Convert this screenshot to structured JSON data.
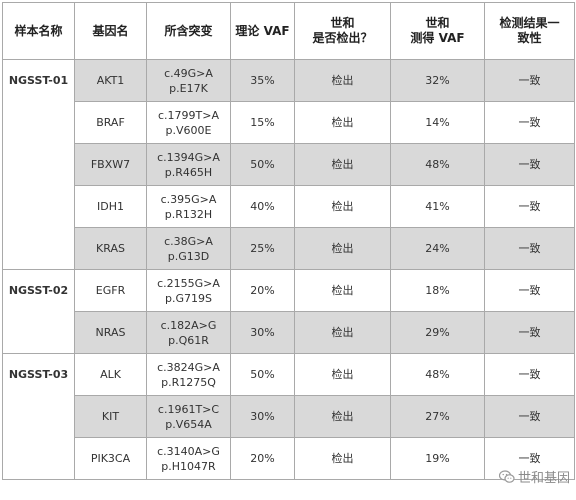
{
  "headers": {
    "sample": "样本名称",
    "gene": "基因名",
    "mutation": "所含突变",
    "theory_vaf": "理论 VAF",
    "detected_l1": "世和",
    "detected_l2": "是否检出？",
    "measured_l1": "世和",
    "measured_l2": "测得 VAF",
    "consistent_l1": "检测结果一",
    "consistent_l2": "致性"
  },
  "rows": [
    {
      "sample": "NGSST-01",
      "gene": "AKT1",
      "cdna": "c.49G>A",
      "protein": "p.E17K",
      "theory": "35%",
      "detected": "检出",
      "measured": "32%",
      "consistent": "一致"
    },
    {
      "sample": "",
      "gene": "BRAF",
      "cdna": "c.1799T>A",
      "protein": "p.V600E",
      "theory": "15%",
      "detected": "检出",
      "measured": "14%",
      "consistent": "一致"
    },
    {
      "sample": "",
      "gene": "FBXW7",
      "cdna": "c.1394G>A",
      "protein": "p.R465H",
      "theory": "50%",
      "detected": "检出",
      "measured": "48%",
      "consistent": "一致"
    },
    {
      "sample": "",
      "gene": "IDH1",
      "cdna": "c.395G>A",
      "protein": "p.R132H",
      "theory": "40%",
      "detected": "检出",
      "measured": "41%",
      "consistent": "一致"
    },
    {
      "sample": "",
      "gene": "KRAS",
      "cdna": "c.38G>A",
      "protein": "p.G13D",
      "theory": "25%",
      "detected": "检出",
      "measured": "24%",
      "consistent": "一致"
    },
    {
      "sample": "NGSST-02",
      "gene": "EGFR",
      "cdna": "c.2155G>A",
      "protein": "p.G719S",
      "theory": "20%",
      "detected": "检出",
      "measured": "18%",
      "consistent": "一致"
    },
    {
      "sample": "",
      "gene": "NRAS",
      "cdna": "c.182A>G",
      "protein": "p.Q61R",
      "theory": "30%",
      "detected": "检出",
      "measured": "29%",
      "consistent": "一致"
    },
    {
      "sample": "NGSST-03",
      "gene": "ALK",
      "cdna": "c.3824G>A",
      "protein": "p.R1275Q",
      "theory": "50%",
      "detected": "检出",
      "measured": "48%",
      "consistent": "一致"
    },
    {
      "sample": "",
      "gene": "KIT",
      "cdna": "c.1961T>C",
      "protein": "p.V654A",
      "theory": "30%",
      "detected": "检出",
      "measured": "27%",
      "consistent": "一致"
    },
    {
      "sample": "",
      "gene": "PIK3CA",
      "cdna": "c.3140A>G",
      "protein": "p.H1047R",
      "theory": "20%",
      "detected": "检出",
      "measured": "19%",
      "consistent": "一致"
    }
  ],
  "watermark": {
    "text": "世和基因",
    "icon": "wechat-icon"
  }
}
